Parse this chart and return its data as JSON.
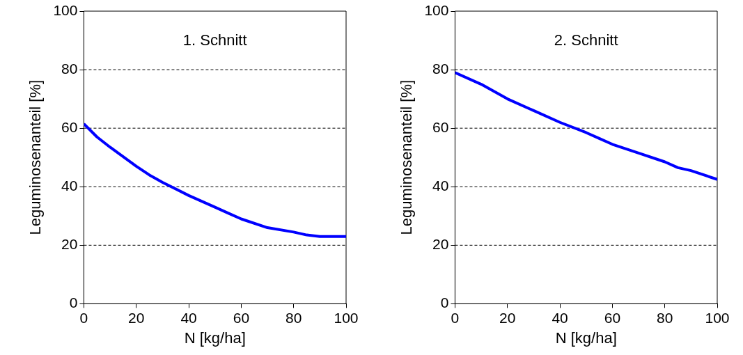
{
  "chart_data": [
    {
      "type": "line",
      "title": "1. Schnitt",
      "xlabel": "N [kg/ha]",
      "ylabel": "Leguminosenanteil [%]",
      "xlim": [
        0,
        100
      ],
      "xticks": [
        0,
        20,
        40,
        60,
        80,
        100
      ],
      "ylim": [
        0,
        100
      ],
      "yticks": [
        0,
        20,
        40,
        60,
        80,
        100
      ],
      "grid": "y",
      "line_style": "solid",
      "legend": false,
      "series": [
        {
          "color": "#0000ff",
          "x": [
            0,
            5,
            10,
            20,
            25,
            30,
            40,
            50,
            55,
            60,
            70,
            80,
            85,
            90,
            100
          ],
          "values": [
            61.5,
            57,
            53.5,
            47,
            44,
            41.5,
            37,
            33,
            31,
            29,
            26,
            24.5,
            23.5,
            23,
            23
          ]
        }
      ]
    },
    {
      "type": "line",
      "title": "2. Schnitt",
      "xlabel": "N [kg/ha]",
      "ylabel": "Leguminosenanteil [%]",
      "xlim": [
        0,
        100
      ],
      "xticks": [
        0,
        20,
        40,
        60,
        80,
        100
      ],
      "ylim": [
        0,
        100
      ],
      "yticks": [
        0,
        20,
        40,
        60,
        80,
        100
      ],
      "grid": "y",
      "line_style": "solid",
      "legend": false,
      "series": [
        {
          "color": "#0000ff",
          "x": [
            0,
            10,
            15,
            20,
            30,
            40,
            50,
            55,
            60,
            70,
            80,
            85,
            90,
            100
          ],
          "values": [
            79,
            75,
            72.5,
            70,
            66,
            62,
            58.5,
            56.5,
            54.5,
            51.5,
            48.5,
            46.5,
            45.5,
            42.5
          ]
        }
      ]
    }
  ]
}
